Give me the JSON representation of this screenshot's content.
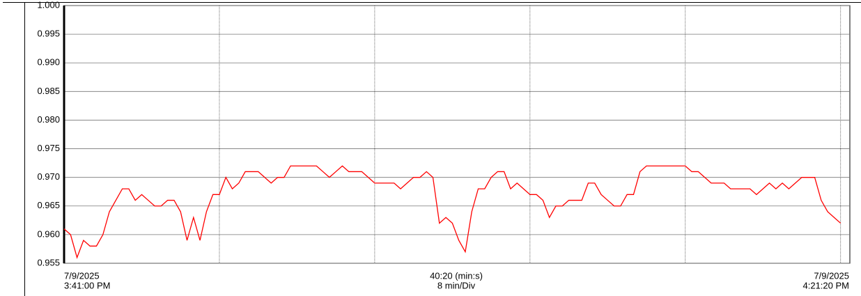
{
  "chart_data": {
    "type": "line",
    "x": [
      0,
      20,
      40,
      60,
      80,
      100,
      120,
      140,
      160,
      180,
      200,
      220,
      240,
      260,
      280,
      300,
      320,
      340,
      360,
      380,
      400,
      420,
      440,
      460,
      480,
      500,
      520,
      540,
      560,
      580,
      600,
      620,
      640,
      660,
      680,
      700,
      720,
      740,
      760,
      780,
      800,
      820,
      840,
      860,
      880,
      900,
      920,
      940,
      960,
      980,
      1000,
      1020,
      1040,
      1060,
      1080,
      1100,
      1120,
      1140,
      1160,
      1180,
      1200,
      1220,
      1240,
      1260,
      1280,
      1300,
      1320,
      1340,
      1360,
      1380,
      1400,
      1420,
      1440,
      1460,
      1480,
      1500,
      1520,
      1540,
      1560,
      1580,
      1600,
      1620,
      1640,
      1660,
      1680,
      1700,
      1720,
      1740,
      1760,
      1780,
      1800,
      1820,
      1840,
      1860,
      1880,
      1900,
      1920,
      1940,
      1960,
      1980,
      2000,
      2020,
      2040,
      2060,
      2080,
      2100,
      2120,
      2140,
      2160,
      2180,
      2200,
      2220,
      2240,
      2260,
      2280,
      2300,
      2320,
      2340,
      2360,
      2380,
      2400
    ],
    "series": [
      {
        "color": "#ff0000",
        "values": [
          0.961,
          0.96,
          0.956,
          0.959,
          0.958,
          0.958,
          0.96,
          0.964,
          0.966,
          0.968,
          0.968,
          0.966,
          0.967,
          0.966,
          0.965,
          0.965,
          0.966,
          0.966,
          0.964,
          0.959,
          0.963,
          0.959,
          0.964,
          0.967,
          0.967,
          0.97,
          0.968,
          0.969,
          0.971,
          0.971,
          0.971,
          0.97,
          0.969,
          0.97,
          0.97,
          0.972,
          0.972,
          0.972,
          0.972,
          0.972,
          0.971,
          0.97,
          0.971,
          0.972,
          0.971,
          0.971,
          0.971,
          0.97,
          0.969,
          0.969,
          0.969,
          0.969,
          0.968,
          0.969,
          0.97,
          0.97,
          0.971,
          0.97,
          0.962,
          0.963,
          0.962,
          0.959,
          0.957,
          0.964,
          0.968,
          0.968,
          0.97,
          0.971,
          0.971,
          0.968,
          0.969,
          0.968,
          0.967,
          0.967,
          0.966,
          0.963,
          0.965,
          0.965,
          0.966,
          0.966,
          0.966,
          0.969,
          0.969,
          0.967,
          0.966,
          0.965,
          0.965,
          0.967,
          0.967,
          0.971,
          0.972,
          0.972,
          0.972,
          0.972,
          0.972,
          0.972,
          0.972,
          0.971,
          0.971,
          0.97,
          0.969,
          0.969,
          0.969,
          0.968,
          0.968,
          0.968,
          0.968,
          0.967,
          0.968,
          0.969,
          0.968,
          0.969,
          0.968,
          0.969,
          0.97,
          0.97,
          0.97,
          0.966,
          0.964,
          0.963,
          0.962
        ]
      }
    ],
    "xlim": [
      0,
      2420
    ],
    "xticks": [
      0,
      480,
      960,
      1440,
      1920,
      2400
    ],
    "ylim": [
      0.955,
      1.0
    ],
    "yticks": [
      0.955,
      {
        "value": 0.96,
        "label": "0.960"
      },
      0.965,
      {
        "value": 0.97,
        "label": "0.970"
      },
      0.975,
      {
        "value": 0.98,
        "label": "0.980"
      },
      0.985,
      {
        "value": 0.99,
        "label": "0.990"
      },
      0.995,
      {
        "value": 1.0,
        "label": "1.000"
      }
    ],
    "grid": true,
    "x_start_label": {
      "date": "7/9/2025",
      "time": "3:41:00 PM"
    },
    "x_center_label": {
      "span": "40:20 (min:s)",
      "scale": "8 min/Div"
    },
    "x_end_label": {
      "date": "7/9/2025",
      "time": "4:21:20 PM"
    }
  }
}
